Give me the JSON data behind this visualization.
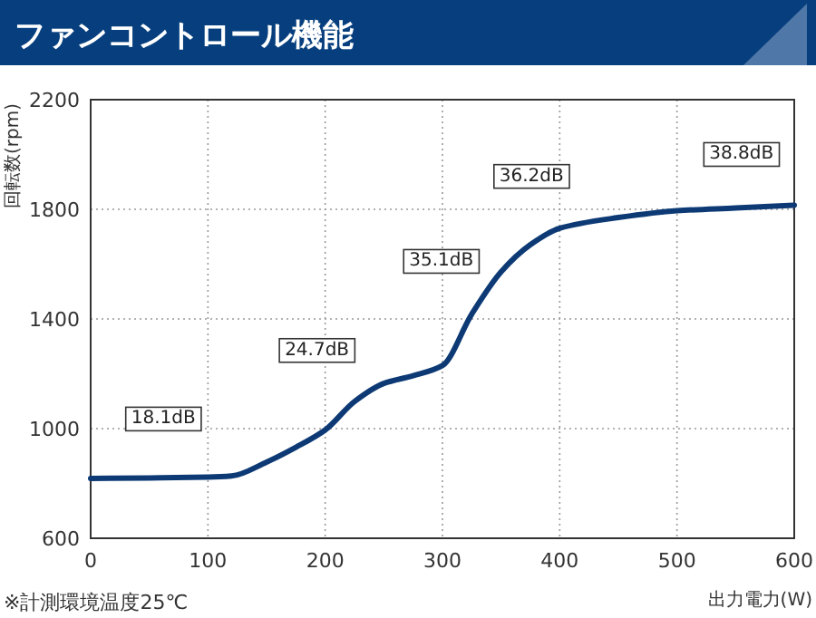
{
  "chart_data": {
    "type": "line",
    "title": "ファンコントロール機能",
    "xlabel": "出力電力(W)",
    "ylabel": "回転数(rpm)",
    "annotations": [
      {
        "text": "18.1dB",
        "x": 62,
        "y": 1045
      },
      {
        "text": "24.7dB",
        "x": 193,
        "y": 1295
      },
      {
        "text": "35.1dB",
        "x": 299,
        "y": 1620
      },
      {
        "text": "36.2dB",
        "x": 376,
        "y": 1930
      },
      {
        "text": "38.8dB",
        "x": 555,
        "y": 2010
      },
      "※計測環境温度25℃"
    ],
    "x": [
      0,
      50,
      100,
      120,
      150,
      175,
      200,
      225,
      250,
      275,
      300,
      325,
      350,
      375,
      400,
      450,
      500,
      550,
      600
    ],
    "series": [
      {
        "color": "#0d3a75",
        "values": [
          818,
          820,
          823,
          827,
          878,
          932,
          995,
          1099,
          1165,
          1193,
          1230,
          1418,
          1572,
          1671,
          1731,
          1770,
          1795,
          1805,
          1815
        ]
      }
    ],
    "xlim": [
      0,
      600
    ],
    "ylim": [
      600,
      2200
    ],
    "xticks": [
      0,
      100,
      200,
      300,
      400,
      500,
      600
    ],
    "yticks": [
      600,
      1000,
      1400,
      1800,
      2200
    ],
    "grid": true,
    "marker": "none",
    "line_style": "solid"
  }
}
